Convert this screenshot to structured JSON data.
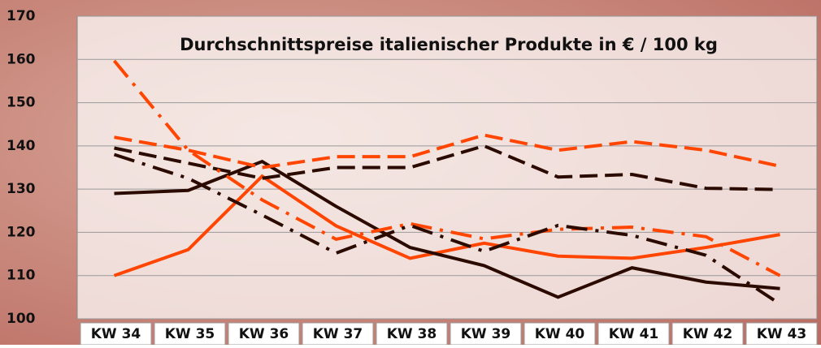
{
  "chart_data": {
    "type": "line",
    "title": "Durchschnittspreise italienischer Produkte in € / 100 kg",
    "categories": [
      "KW 34",
      "KW 35",
      "KW 36",
      "KW 37",
      "KW 38",
      "KW 39",
      "KW 40",
      "KW 41",
      "KW 42",
      "KW 43"
    ],
    "series": [
      {
        "color": "#ff4500",
        "dash": "solid",
        "values": [
          110,
          116,
          133,
          121.5,
          114,
          117.5,
          114.5,
          114,
          116.5,
          119.5
        ]
      },
      {
        "color": "#2b0a00",
        "dash": "solid",
        "values": [
          129,
          129.7,
          136.4,
          126,
          116.5,
          112.3,
          105,
          111.8,
          108.5,
          107
        ]
      },
      {
        "color": "#ff4500",
        "dash": "dashed",
        "values": [
          142,
          139,
          135,
          137.5,
          137.5,
          142.5,
          139,
          141,
          139,
          135.3
        ]
      },
      {
        "color": "#2b0a00",
        "dash": "dashed",
        "values": [
          139.5,
          136,
          132.5,
          135,
          135,
          140,
          132.8,
          133.4,
          130.2,
          129.9
        ]
      },
      {
        "color": "#ff4500",
        "dash": "dashdot",
        "values": [
          159.7,
          139,
          127.5,
          118.4,
          122,
          118.5,
          120.7,
          121.2,
          119,
          110
        ]
      },
      {
        "color": "#2b0a00",
        "dash": "dashdot",
        "values": [
          138,
          132.5,
          124,
          115.2,
          121.6,
          115.6,
          121.6,
          119.3,
          114.7,
          103.4
        ]
      }
    ],
    "ylim": [
      100,
      170
    ],
    "yticks": [
      100,
      110,
      120,
      130,
      140,
      150,
      160,
      170
    ],
    "grid": true
  }
}
